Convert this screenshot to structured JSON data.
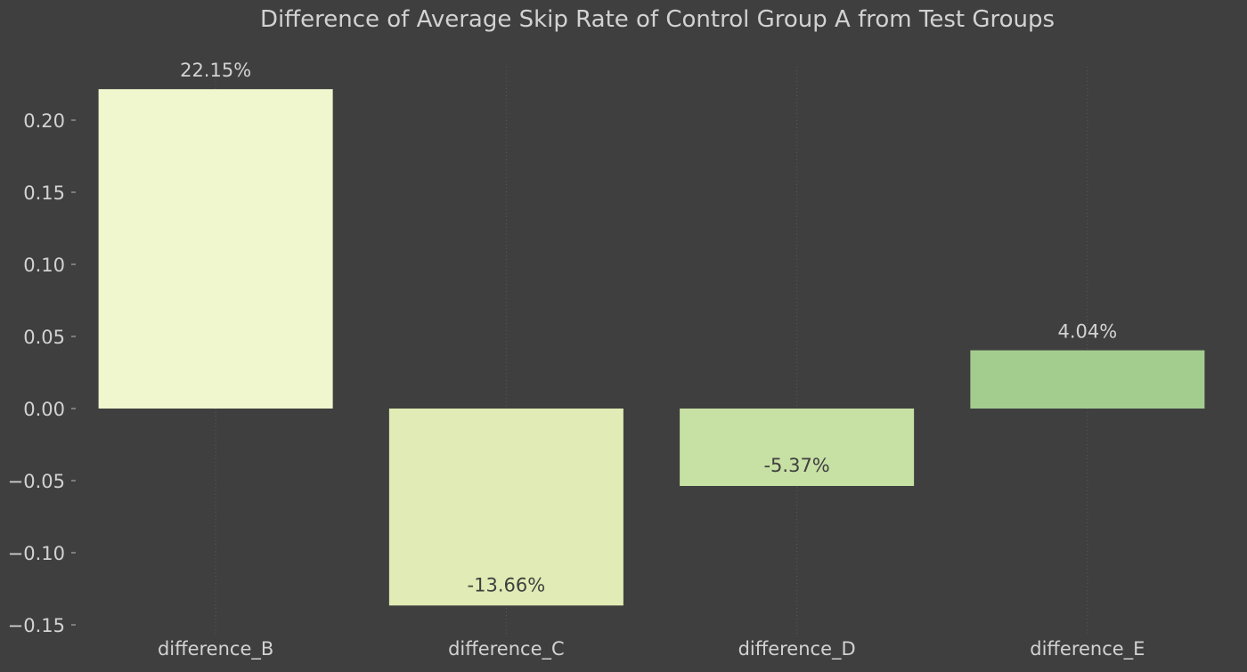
{
  "chart_data": {
    "type": "bar",
    "title": "Difference of Average Skip Rate of Control Group A from Test Groups",
    "xlabel": "",
    "ylabel": "",
    "categories": [
      "difference_B",
      "difference_C",
      "difference_D",
      "difference_E"
    ],
    "values": [
      0.2215,
      -0.1366,
      -0.0537,
      0.0404
    ],
    "data_labels": [
      "22.15%",
      "-13.66%",
      "-5.37%",
      "4.04%"
    ],
    "bar_colors": [
      "#f0f6cd",
      "#e1ebb5",
      "#c7e0a4",
      "#a3cd8f"
    ],
    "ylim": [
      -0.155,
      0.235
    ],
    "yticks": [
      -0.15,
      -0.1,
      -0.05,
      0.0,
      0.05,
      0.1,
      0.15,
      0.2
    ],
    "ytick_labels": [
      "−0.15",
      "−0.10",
      "−0.05",
      "0.00",
      "0.05",
      "0.10",
      "0.15",
      "0.20"
    ],
    "grid": "x-only dotted",
    "legend": "none",
    "colors": {
      "background": "#3f3f3f",
      "text": "#d2d2d2",
      "inside_label_text": "#3f3f3f",
      "grid": "#5a5a5a",
      "tick": "#b8b8b8"
    }
  }
}
